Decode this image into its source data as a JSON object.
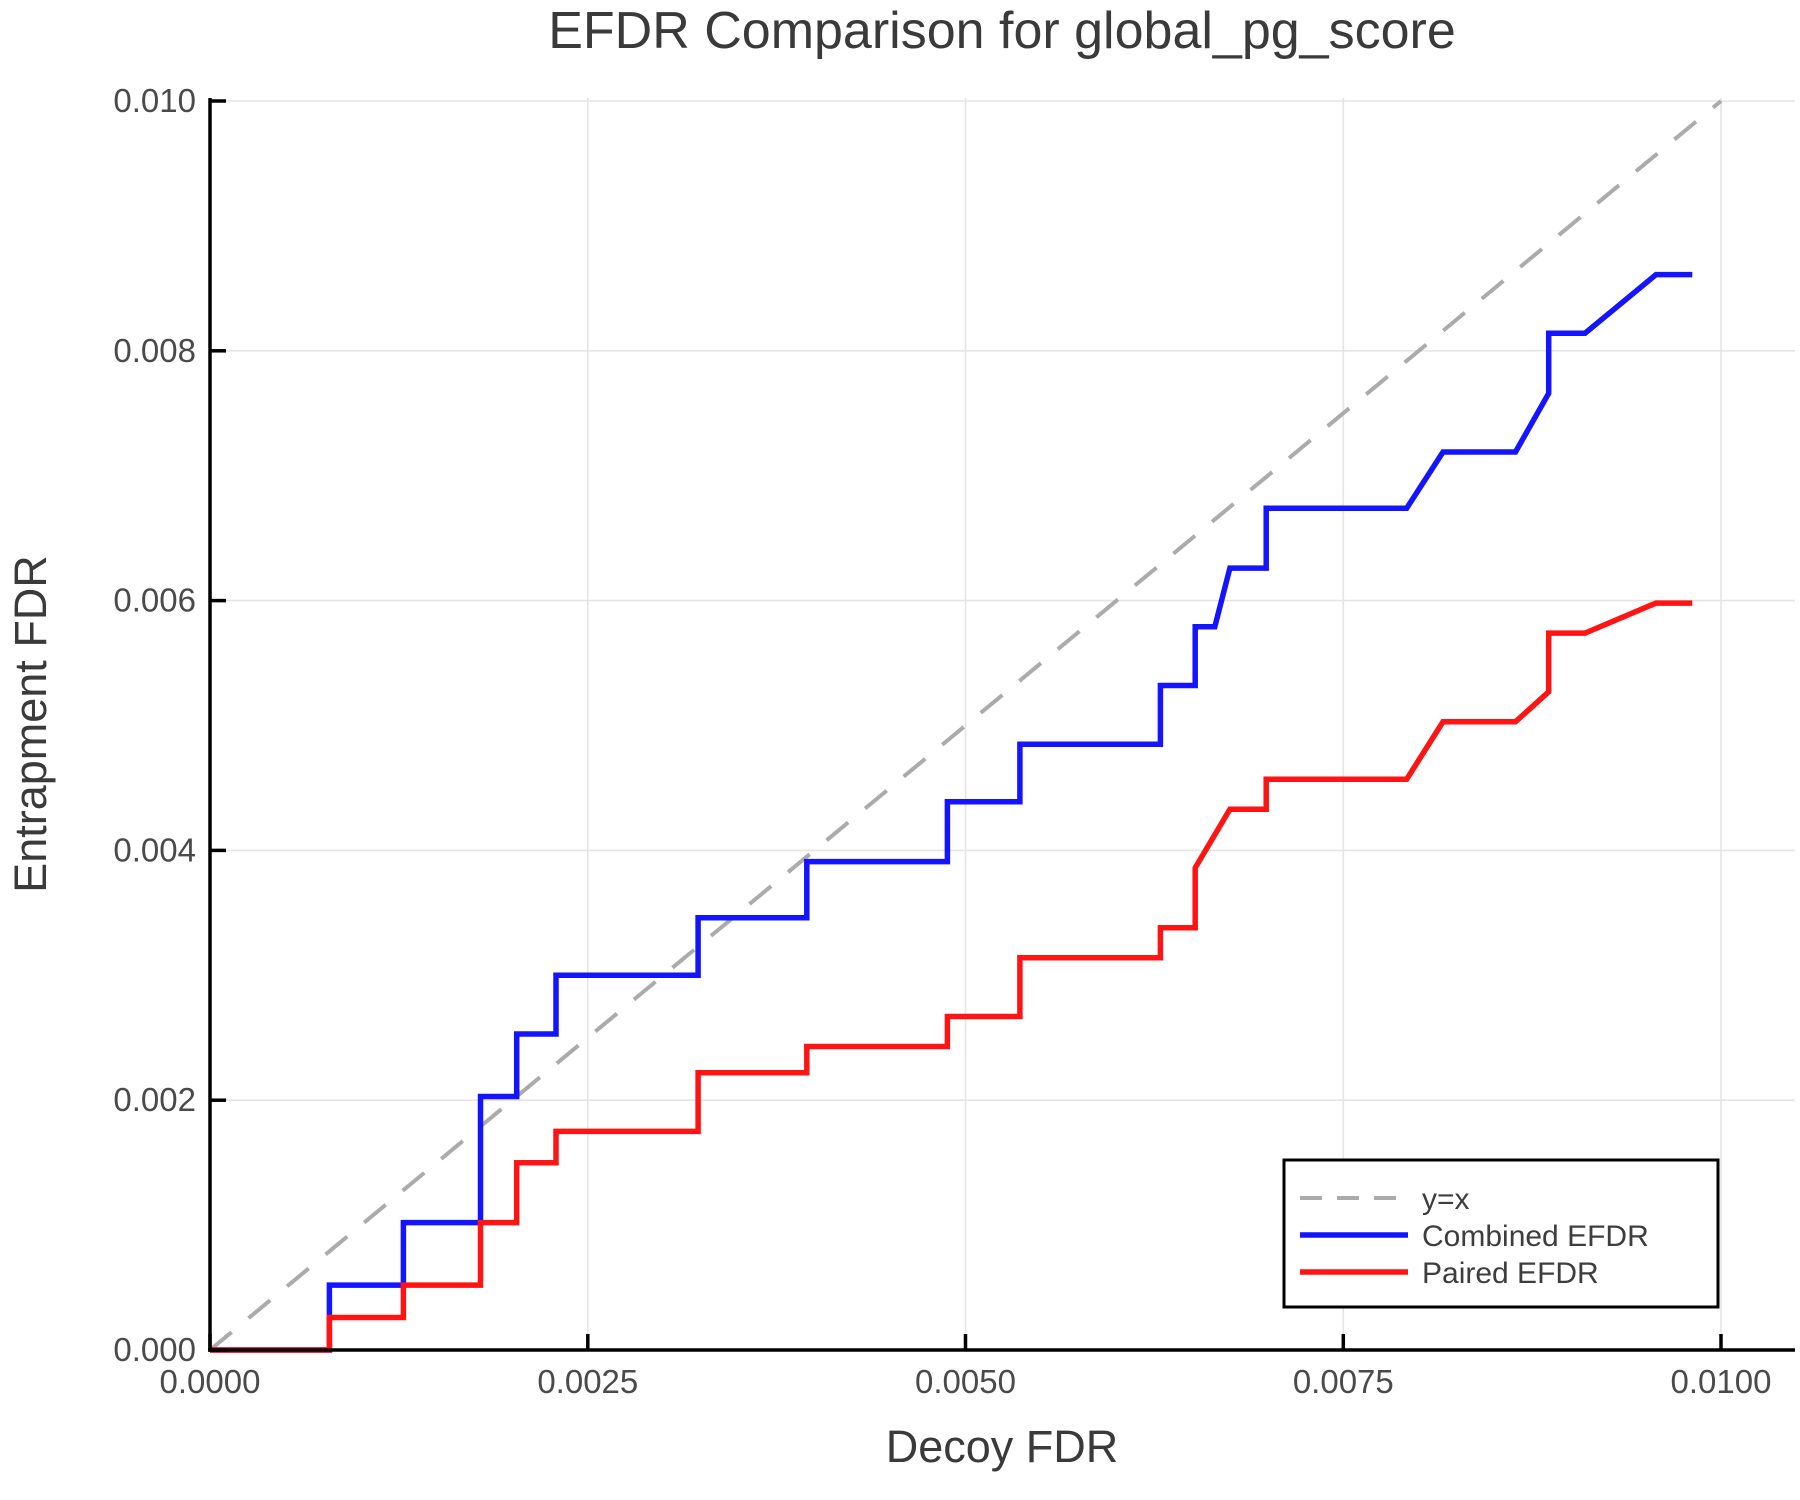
{
  "figure": {
    "title": "EFDR Comparison for global_pg_score"
  },
  "axes": {
    "xlabel": "Decoy FDR",
    "ylabel": "Entrapment FDR"
  },
  "legend": {
    "position": "bottom-right",
    "items": [
      {
        "label": "y=x"
      },
      {
        "label": "Combined EFDR"
      },
      {
        "label": "Paired EFDR"
      }
    ]
  },
  "colors": {
    "diagonal": "#ababab",
    "combined": "#1414ff",
    "paired": "#ff1414",
    "grid": "#e5e5e5",
    "spine": "#000000",
    "legend_border": "#000000",
    "background": "#ffffff"
  },
  "chart_data": {
    "type": "line",
    "title": "EFDR Comparison for global_pg_score",
    "xlabel": "Decoy FDR",
    "ylabel": "Entrapment FDR",
    "xlim": [
      0.0,
      0.01
    ],
    "ylim": [
      0.0,
      0.01
    ],
    "grid": true,
    "legend_position": "bottom-right",
    "x_ticks": [
      0.0,
      0.0025,
      0.005,
      0.0075,
      0.01
    ],
    "x_tick_labels": [
      "0.0000",
      "0.0025",
      "0.0050",
      "0.0075",
      "0.0100"
    ],
    "y_ticks": [
      0.0,
      0.002,
      0.004,
      0.006,
      0.008,
      0.01
    ],
    "y_tick_labels": [
      "0.000",
      "0.002",
      "0.004",
      "0.006",
      "0.008",
      "0.010"
    ],
    "series": [
      {
        "name": "y=x",
        "style": "dashed",
        "color": "#ababab",
        "points": [
          [
            0.0,
            0.0
          ],
          [
            0.01,
            0.01
          ]
        ]
      },
      {
        "name": "Combined EFDR",
        "style": "solid",
        "color": "#1414ff",
        "points": [
          [
            0.0,
            0.0
          ],
          [
            0.00079,
            0.0
          ],
          [
            0.00079,
            0.00052
          ],
          [
            0.00128,
            0.00052
          ],
          [
            0.00128,
            0.00102
          ],
          [
            0.00179,
            0.00102
          ],
          [
            0.00179,
            0.00203
          ],
          [
            0.00203,
            0.00203
          ],
          [
            0.00203,
            0.00253
          ],
          [
            0.00229,
            0.00253
          ],
          [
            0.00229,
            0.003
          ],
          [
            0.00323,
            0.003
          ],
          [
            0.00323,
            0.00346
          ],
          [
            0.00395,
            0.00346
          ],
          [
            0.00395,
            0.00391
          ],
          [
            0.00488,
            0.00391
          ],
          [
            0.00488,
            0.00439
          ],
          [
            0.00536,
            0.00439
          ],
          [
            0.00536,
            0.00485
          ],
          [
            0.00629,
            0.00485
          ],
          [
            0.00629,
            0.00532
          ],
          [
            0.00652,
            0.00532
          ],
          [
            0.00652,
            0.00579
          ],
          [
            0.00665,
            0.00579
          ],
          [
            0.00675,
            0.00626
          ],
          [
            0.00699,
            0.00626
          ],
          [
            0.00699,
            0.00674
          ],
          [
            0.00792,
            0.00674
          ],
          [
            0.00816,
            0.00719
          ],
          [
            0.00864,
            0.00719
          ],
          [
            0.00886,
            0.00766
          ],
          [
            0.00886,
            0.00814
          ],
          [
            0.0091,
            0.00814
          ],
          [
            0.00957,
            0.00861
          ],
          [
            0.00981,
            0.00861
          ]
        ]
      },
      {
        "name": "Paired EFDR",
        "style": "solid",
        "color": "#ff1414",
        "points": [
          [
            0.0,
            0.0
          ],
          [
            0.00079,
            0.0
          ],
          [
            0.00079,
            0.00026
          ],
          [
            0.00128,
            0.00026
          ],
          [
            0.00128,
            0.00052
          ],
          [
            0.00179,
            0.00052
          ],
          [
            0.00179,
            0.00102
          ],
          [
            0.00203,
            0.00102
          ],
          [
            0.00203,
            0.0015
          ],
          [
            0.00229,
            0.0015
          ],
          [
            0.00229,
            0.00175
          ],
          [
            0.00323,
            0.00175
          ],
          [
            0.00323,
            0.00222
          ],
          [
            0.00395,
            0.00222
          ],
          [
            0.00395,
            0.00243
          ],
          [
            0.00488,
            0.00243
          ],
          [
            0.00488,
            0.00267
          ],
          [
            0.00536,
            0.00267
          ],
          [
            0.00536,
            0.00314
          ],
          [
            0.00629,
            0.00314
          ],
          [
            0.00629,
            0.00338
          ],
          [
            0.00652,
            0.00338
          ],
          [
            0.00652,
            0.00386
          ],
          [
            0.00675,
            0.00433
          ],
          [
            0.00699,
            0.00433
          ],
          [
            0.00699,
            0.00457
          ],
          [
            0.00792,
            0.00457
          ],
          [
            0.00816,
            0.00503
          ],
          [
            0.00864,
            0.00503
          ],
          [
            0.00886,
            0.00527
          ],
          [
            0.00886,
            0.00574
          ],
          [
            0.0091,
            0.00574
          ],
          [
            0.00957,
            0.00598
          ],
          [
            0.00981,
            0.00598
          ]
        ]
      }
    ]
  }
}
